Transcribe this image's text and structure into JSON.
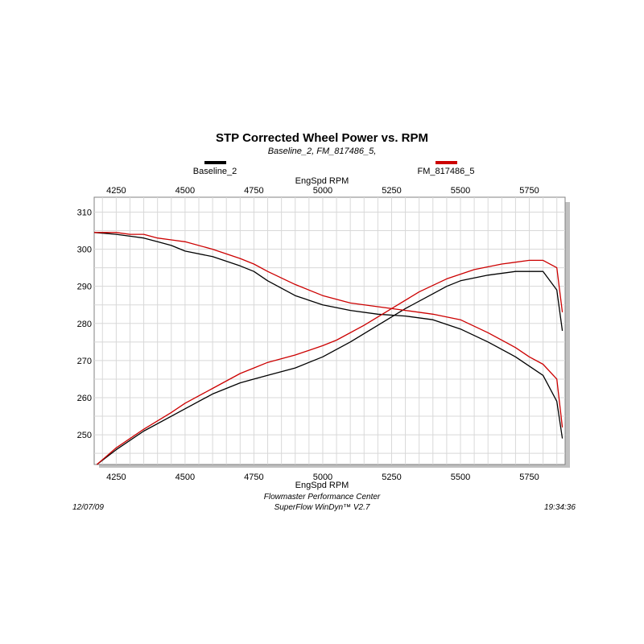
{
  "chart_data": {
    "type": "line",
    "title": "STP Corrected Wheel Power vs. RPM",
    "subtitle": "Baseline_2, FM_817486_5,",
    "xlabel_top": "EngSpd  RPM",
    "xlabel_bottom": "EngSpd  RPM",
    "xlim": [
      4170,
      5880
    ],
    "ylim": [
      242,
      314
    ],
    "xticks": [
      4250,
      4500,
      4750,
      5000,
      5250,
      5500,
      5750
    ],
    "yticks": [
      250,
      260,
      270,
      280,
      290,
      300,
      310
    ],
    "grid": true,
    "legend_placement": "top",
    "series": [
      {
        "name": "Baseline_2",
        "color": "#000000",
        "curves": [
          {
            "label": "power",
            "x": [
              4180,
              4250,
              4350,
              4450,
              4500,
              4600,
              4700,
              4750,
              4800,
              4900,
              5000,
              5100,
              5200,
              5300,
              5400,
              5450,
              5500,
              5600,
              5700,
              5750,
              5800,
              5850,
              5870
            ],
            "y": [
              242,
              246,
              251,
              255,
              257,
              261,
              264,
              265,
              266,
              268,
              271,
              275,
              279.5,
              284,
              288,
              290,
              291.5,
              293,
              294,
              294,
              294,
              289,
              278
            ]
          },
          {
            "label": "torque",
            "x": [
              4170,
              4250,
              4300,
              4350,
              4400,
              4450,
              4500,
              4600,
              4700,
              4750,
              4800,
              4900,
              5000,
              5100,
              5200,
              5300,
              5400,
              5500,
              5600,
              5700,
              5750,
              5800,
              5850,
              5870
            ],
            "y": [
              304.5,
              304,
              303.5,
              303,
              302,
              301,
              299.5,
              298,
              295.5,
              294,
              291.5,
              287.5,
              285,
              283.5,
              282.5,
              282,
              281,
              278.5,
              275,
              271,
              268.5,
              266,
              259,
              249
            ]
          }
        ]
      },
      {
        "name": "FM_817486_5",
        "color": "#cc0000",
        "curves": [
          {
            "label": "power",
            "x": [
              4180,
              4250,
              4350,
              4450,
              4500,
              4600,
              4700,
              4750,
              4800,
              4900,
              5000,
              5050,
              5150,
              5250,
              5350,
              5450,
              5550,
              5650,
              5750,
              5800,
              5850,
              5870
            ],
            "y": [
              242,
              246.5,
              251.5,
              256,
              258.5,
              262.5,
              266.5,
              268,
              269.5,
              271.5,
              274,
              275.5,
              279.5,
              284,
              288.5,
              292,
              294.5,
              296,
              297,
              297,
              295,
              283
            ]
          },
          {
            "label": "torque",
            "x": [
              4170,
              4250,
              4300,
              4350,
              4400,
              4450,
              4500,
              4600,
              4700,
              4750,
              4800,
              4900,
              5000,
              5100,
              5200,
              5300,
              5400,
              5500,
              5600,
              5700,
              5750,
              5800,
              5850,
              5870
            ],
            "y": [
              304.5,
              304.5,
              304,
              304,
              303,
              302.5,
              302,
              300,
              297.5,
              296,
              294,
              290.5,
              287.5,
              285.5,
              284.5,
              283.5,
              282.5,
              281,
              277.5,
              273.5,
              271,
              269,
              265,
              252
            ]
          }
        ]
      }
    ]
  },
  "footer": {
    "date": "12/07/09",
    "center_line1": "Flowmaster Performance Center",
    "center_line2": "SuperFlow WinDyn™ V2.7",
    "time": "19:34:36"
  }
}
